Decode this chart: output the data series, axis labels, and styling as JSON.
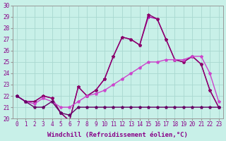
{
  "xlabel": "Windchill (Refroidissement éolien,°C)",
  "background_color": "#c8f0e8",
  "grid_color": "#a8d8d0",
  "xlim": [
    -0.5,
    23.5
  ],
  "ylim": [
    20,
    30
  ],
  "xticks": [
    0,
    1,
    2,
    3,
    4,
    5,
    6,
    7,
    8,
    9,
    10,
    11,
    12,
    13,
    14,
    15,
    16,
    17,
    18,
    19,
    20,
    21,
    22,
    23
  ],
  "yticks": [
    20,
    21,
    22,
    23,
    24,
    25,
    26,
    27,
    28,
    29,
    30
  ],
  "line1_x": [
    0,
    1,
    2,
    3,
    4,
    5,
    6,
    7,
    8,
    9,
    10,
    11,
    12,
    13,
    14,
    15,
    16,
    17,
    18,
    19,
    20,
    21,
    22,
    23
  ],
  "line1_y": [
    22.0,
    21.5,
    21.5,
    22.0,
    21.8,
    20.5,
    19.8,
    22.8,
    22.0,
    22.5,
    23.5,
    25.5,
    27.2,
    27.0,
    26.5,
    29.0,
    28.8,
    27.0,
    25.2,
    25.0,
    25.5,
    24.8,
    22.5,
    21.0
  ],
  "line2_x": [
    0,
    1,
    2,
    3,
    4,
    5,
    6,
    7,
    8,
    9,
    10,
    11,
    12,
    13,
    14,
    15,
    16,
    17,
    18,
    19,
    20,
    21,
    22,
    23
  ],
  "line2_y": [
    22.0,
    21.5,
    21.5,
    22.0,
    21.8,
    20.5,
    19.8,
    22.8,
    22.0,
    22.5,
    23.5,
    25.5,
    27.2,
    27.0,
    26.5,
    29.2,
    28.8,
    27.0,
    25.2,
    25.0,
    25.5,
    24.8,
    22.5,
    21.0
  ],
  "line3_x": [
    0,
    1,
    2,
    3,
    4,
    5,
    6,
    7,
    8,
    9,
    10,
    11,
    12,
    13,
    14,
    15,
    16,
    17,
    18,
    19,
    20,
    21,
    22,
    23
  ],
  "line3_y": [
    22.0,
    21.5,
    21.3,
    21.8,
    21.5,
    21.0,
    21.0,
    21.5,
    22.0,
    22.2,
    22.5,
    23.0,
    23.5,
    24.0,
    24.5,
    25.0,
    25.0,
    25.2,
    25.2,
    25.2,
    25.5,
    25.5,
    24.0,
    21.5
  ],
  "line4_x": [
    0,
    1,
    2,
    3,
    4,
    5,
    6,
    7,
    8,
    9,
    10,
    11,
    12,
    13,
    14,
    15,
    16,
    17,
    18,
    19,
    20,
    21,
    22,
    23
  ],
  "line4_y": [
    22.0,
    21.5,
    21.0,
    21.0,
    21.5,
    20.5,
    20.3,
    21.0,
    21.0,
    21.0,
    21.0,
    21.0,
    21.0,
    21.0,
    21.0,
    21.0,
    21.0,
    21.0,
    21.0,
    21.0,
    21.0,
    21.0,
    21.0,
    21.0
  ],
  "line_colors": [
    "#aa00aa",
    "#880066",
    "#cc44cc",
    "#660066"
  ],
  "markersize": 3,
  "linewidth": 1.0,
  "xlabel_fontsize": 6.5,
  "tick_fontsize": 5.5
}
